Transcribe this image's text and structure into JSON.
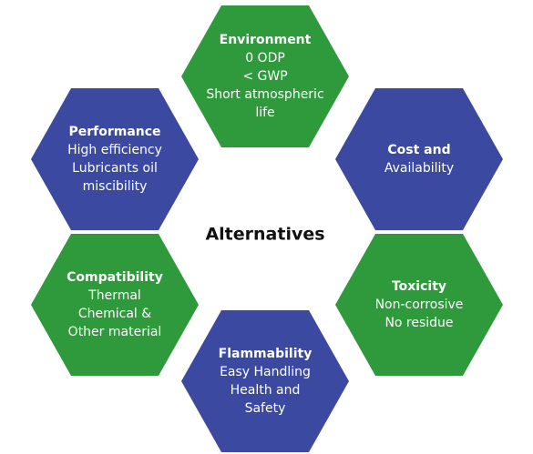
{
  "center": "Alternatives",
  "hexagons": [
    {
      "title": "Environment",
      "lines": [
        "0 ODP",
        "< GWP",
        "Short atmospheric",
        "life"
      ]
    },
    {
      "title": "Cost and",
      "lines": [
        "Availability"
      ]
    },
    {
      "title": "Toxicity",
      "lines": [
        "Non-corrosive",
        "No residue"
      ]
    },
    {
      "title": "Flammability",
      "lines": [
        "Easy Handling",
        "Health and",
        "Safety"
      ]
    },
    {
      "title": "Compatibility",
      "lines": [
        "Thermal",
        "Chemical &",
        "Other material"
      ]
    },
    {
      "title": "Performance",
      "lines": [
        "High efficiency",
        "Lubricants oil",
        "miscibility"
      ]
    }
  ]
}
